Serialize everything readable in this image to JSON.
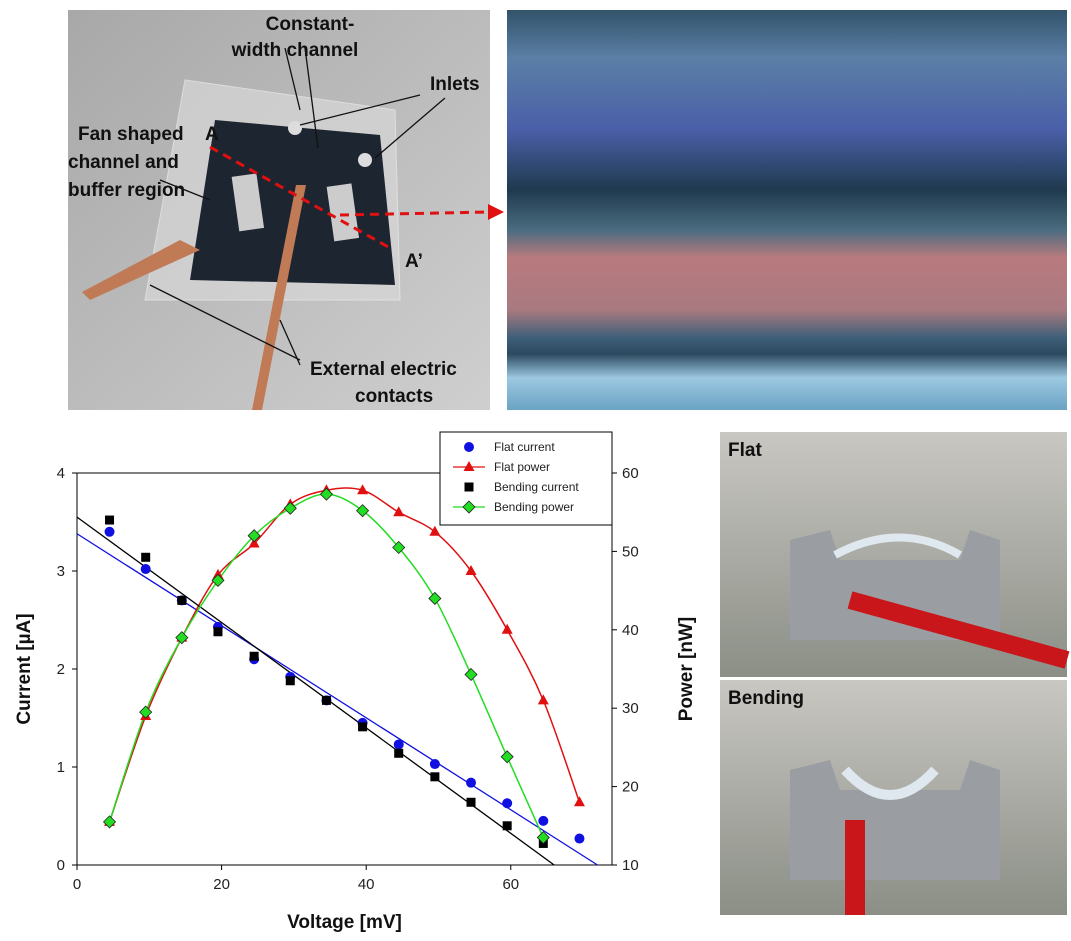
{
  "chart_data": {
    "type": "scatter-line",
    "xlabel": "Voltage [mV]",
    "ylabel": "Current [µA]",
    "y2label": "Power [nW]",
    "xlim": [
      0,
      74
    ],
    "xticks": [
      0,
      20,
      40,
      60
    ],
    "ylim": [
      0,
      4
    ],
    "yticks": [
      0,
      1,
      2,
      3,
      4
    ],
    "y2lim": [
      10,
      60
    ],
    "y2ticks": [
      10,
      20,
      30,
      40,
      50,
      60
    ],
    "series": [
      {
        "name": "Flat current",
        "color": "#1010e0",
        "marker": "circle",
        "x": [
          4.5,
          9.5,
          14.5,
          19.5,
          24.5,
          29.5,
          34.5,
          39.5,
          44.5,
          49.5,
          54.5,
          59.5,
          64.5,
          69.5
        ],
        "values": [
          3.4,
          3.02,
          2.7,
          2.43,
          2.1,
          1.92,
          1.68,
          1.45,
          1.23,
          1.03,
          0.84,
          0.63,
          0.45,
          0.27
        ],
        "trend": {
          "x": [
            0,
            72
          ],
          "values": [
            3.38,
            0
          ]
        }
      },
      {
        "name": "Flat power",
        "color": "#e01010",
        "marker": "triangle",
        "axis": "y2",
        "x": [
          4.5,
          9.5,
          14.5,
          19.5,
          24.5,
          29.5,
          34.5,
          39.5,
          44.5,
          49.5,
          54.5,
          59.5,
          64.5,
          69.5
        ],
        "values": [
          15.5,
          29,
          39,
          47,
          51,
          56,
          57.8,
          57.8,
          55,
          52.5,
          47.5,
          40,
          31,
          18
        ]
      },
      {
        "name": "Bending current",
        "color": "#000000",
        "marker": "square",
        "x": [
          4.5,
          9.5,
          14.5,
          19.5,
          24.5,
          29.5,
          34.5,
          39.5,
          44.5,
          49.5,
          54.5,
          59.5,
          64.5
        ],
        "values": [
          3.52,
          3.14,
          2.7,
          2.38,
          2.13,
          1.88,
          1.68,
          1.41,
          1.14,
          0.9,
          0.64,
          0.4,
          0.22
        ],
        "trend": {
          "x": [
            0,
            66
          ],
          "values": [
            3.55,
            0
          ]
        }
      },
      {
        "name": "Bending power",
        "color": "#22dd22",
        "marker": "diamond",
        "axis": "y2",
        "x": [
          4.5,
          9.5,
          14.5,
          19.5,
          24.5,
          29.5,
          34.5,
          39.5,
          44.5,
          49.5,
          54.5,
          59.5,
          64.5
        ],
        "values": [
          15.5,
          29.5,
          39,
          46.3,
          52,
          55.5,
          57.3,
          55.2,
          50.5,
          44,
          34.3,
          23.8,
          13.5
        ]
      }
    ]
  },
  "photos": {
    "device": {
      "constant_width": "Constant-",
      "constant_width2": "width channel",
      "inlets": "Inlets",
      "fan1": "Fan shaped",
      "fan2": "channel and",
      "fan3": "buffer region",
      "a": "A",
      "a_prime": "A’",
      "ext1": "External electric",
      "ext2": "contacts"
    },
    "flat": "Flat",
    "bending": "Bending"
  }
}
